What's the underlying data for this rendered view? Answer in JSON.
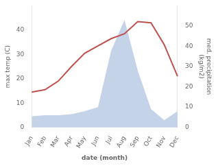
{
  "chart_data": {
    "type": "line",
    "categories": [
      "Jan",
      "Feb",
      "Mar",
      "Apr",
      "May",
      "Jun",
      "Jul",
      "Aug",
      "Sep",
      "Oct",
      "Nov",
      "Dec"
    ],
    "series": [
      {
        "type": "area",
        "axis": "y2",
        "color": "#c5d3e8",
        "values": [
          5.5,
          6.0,
          6.0,
          6.5,
          8.0,
          10.0,
          38.0,
          53.0,
          28.0,
          9.0,
          3.5,
          8.0
        ]
      },
      {
        "type": "line",
        "color": "#c0504d",
        "values": [
          14.5,
          15.5,
          19.0,
          25.0,
          30.5,
          33.5,
          36.5,
          38.5,
          43.5,
          43.0,
          34.0,
          21.0
        ]
      }
    ],
    "x_label": "date (month)",
    "y_label": "max temp (C)",
    "y2_label": "med. precipitation\n(kg/m2)",
    "ylim": [
      0,
      50
    ],
    "yticks": [
      0,
      10,
      20,
      30,
      40
    ],
    "y2lim": [
      0,
      60
    ],
    "y2ticks": [
      0,
      10,
      20,
      30,
      40,
      50
    ],
    "grid": false
  }
}
